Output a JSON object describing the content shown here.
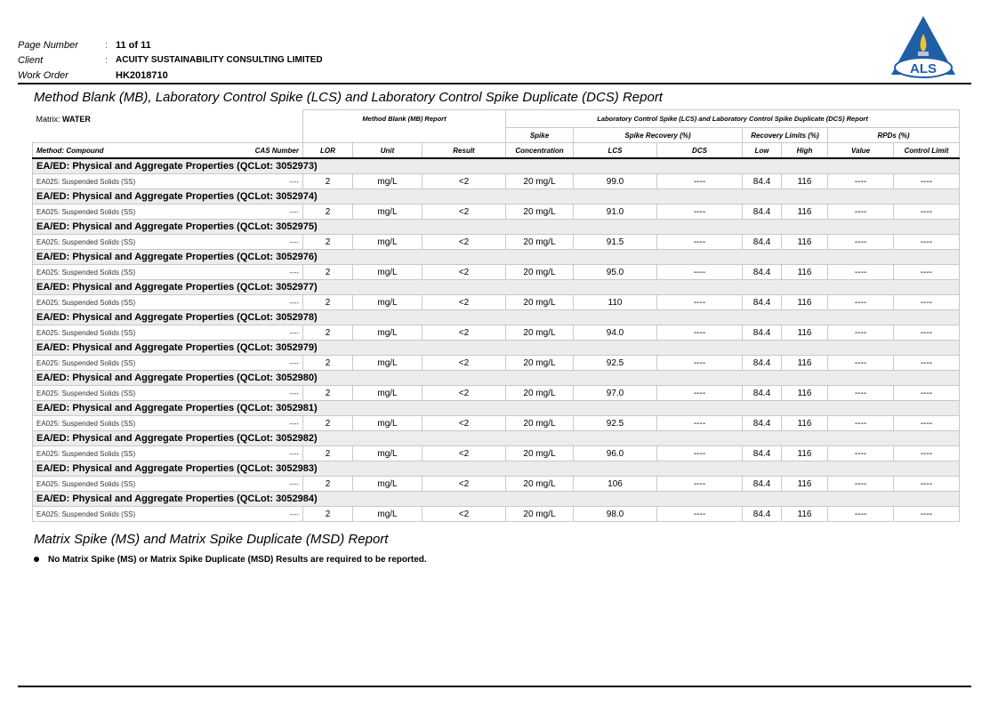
{
  "header": {
    "page_number_label": "Page Number",
    "page_number": "11 of 11",
    "client_label": "Client",
    "client": "ACUITY SUSTAINABILITY CONSULTING LIMITED",
    "work_order_label": "Work Order",
    "work_order": "HK2018710",
    "colon": ":"
  },
  "logo": {
    "text": "ALS",
    "colors": {
      "triangle": "#1f5fa6",
      "flame": "#f2c230"
    }
  },
  "title": "Method Blank (MB), Laboratory Control Spike (LCS) and Laboratory Control Spike Duplicate (DCS) Report",
  "table": {
    "matrix_label": "Matrix:",
    "matrix_value": "WATER",
    "mb_group": "Method Blank (MB) Report",
    "lcs_group": "Laboratory Control Spike (LCS) and Laboratory Control Spike Duplicate (DCS) Report",
    "spike_top": "Spike",
    "spike_recovery": "Spike Recovery (%)",
    "recovery_limits": "Recovery Limits (%)",
    "rpds": "RPDs (%)",
    "columns": {
      "compound": "Method: Compound",
      "cas": "CAS Number",
      "lor": "LOR",
      "unit": "Unit",
      "result": "Result",
      "spike": "Concentration",
      "lcs": "LCS",
      "dcs": "DCS",
      "low": "Low",
      "high": "High",
      "value": "Value",
      "control": "Control Limit"
    },
    "groups": [
      {
        "title": "EA/ED: Physical and Aggregate Properties  (QCLot: 3052973)",
        "row": {
          "compound": "EA025: Suspended Solids (SS)",
          "cas": "----",
          "lor": "2",
          "unit": "mg/L",
          "result": "<2",
          "spike": "20 mg/L",
          "lcs": "99.0",
          "dcs": "----",
          "low": "84.4",
          "high": "116",
          "value": "----",
          "control": "----"
        }
      },
      {
        "title": "EA/ED: Physical and Aggregate Properties  (QCLot: 3052974)",
        "row": {
          "compound": "EA025: Suspended Solids (SS)",
          "cas": "----",
          "lor": "2",
          "unit": "mg/L",
          "result": "<2",
          "spike": "20 mg/L",
          "lcs": "91.0",
          "dcs": "----",
          "low": "84.4",
          "high": "116",
          "value": "----",
          "control": "----"
        }
      },
      {
        "title": "EA/ED: Physical and Aggregate Properties  (QCLot: 3052975)",
        "row": {
          "compound": "EA025: Suspended Solids (SS)",
          "cas": "----",
          "lor": "2",
          "unit": "mg/L",
          "result": "<2",
          "spike": "20 mg/L",
          "lcs": "91.5",
          "dcs": "----",
          "low": "84.4",
          "high": "116",
          "value": "----",
          "control": "----"
        }
      },
      {
        "title": "EA/ED: Physical and Aggregate Properties  (QCLot: 3052976)",
        "row": {
          "compound": "EA025: Suspended Solids (SS)",
          "cas": "----",
          "lor": "2",
          "unit": "mg/L",
          "result": "<2",
          "spike": "20 mg/L",
          "lcs": "95.0",
          "dcs": "----",
          "low": "84.4",
          "high": "116",
          "value": "----",
          "control": "----"
        }
      },
      {
        "title": "EA/ED: Physical and Aggregate Properties  (QCLot: 3052977)",
        "row": {
          "compound": "EA025: Suspended Solids (SS)",
          "cas": "----",
          "lor": "2",
          "unit": "mg/L",
          "result": "<2",
          "spike": "20 mg/L",
          "lcs": "110",
          "dcs": "----",
          "low": "84.4",
          "high": "116",
          "value": "----",
          "control": "----"
        }
      },
      {
        "title": "EA/ED: Physical and Aggregate Properties  (QCLot: 3052978)",
        "row": {
          "compound": "EA025: Suspended Solids (SS)",
          "cas": "----",
          "lor": "2",
          "unit": "mg/L",
          "result": "<2",
          "spike": "20 mg/L",
          "lcs": "94.0",
          "dcs": "----",
          "low": "84.4",
          "high": "116",
          "value": "----",
          "control": "----"
        }
      },
      {
        "title": "EA/ED: Physical and Aggregate Properties  (QCLot: 3052979)",
        "row": {
          "compound": "EA025: Suspended Solids (SS)",
          "cas": "----",
          "lor": "2",
          "unit": "mg/L",
          "result": "<2",
          "spike": "20 mg/L",
          "lcs": "92.5",
          "dcs": "----",
          "low": "84.4",
          "high": "116",
          "value": "----",
          "control": "----"
        }
      },
      {
        "title": "EA/ED: Physical and Aggregate Properties  (QCLot: 3052980)",
        "row": {
          "compound": "EA025: Suspended Solids (SS)",
          "cas": "----",
          "lor": "2",
          "unit": "mg/L",
          "result": "<2",
          "spike": "20 mg/L",
          "lcs": "97.0",
          "dcs": "----",
          "low": "84.4",
          "high": "116",
          "value": "----",
          "control": "----"
        }
      },
      {
        "title": "EA/ED: Physical and Aggregate Properties  (QCLot: 3052981)",
        "row": {
          "compound": "EA025: Suspended Solids (SS)",
          "cas": "----",
          "lor": "2",
          "unit": "mg/L",
          "result": "<2",
          "spike": "20 mg/L",
          "lcs": "92.5",
          "dcs": "----",
          "low": "84.4",
          "high": "116",
          "value": "----",
          "control": "----"
        }
      },
      {
        "title": "EA/ED: Physical and Aggregate Properties  (QCLot: 3052982)",
        "row": {
          "compound": "EA025: Suspended Solids (SS)",
          "cas": "----",
          "lor": "2",
          "unit": "mg/L",
          "result": "<2",
          "spike": "20 mg/L",
          "lcs": "96.0",
          "dcs": "----",
          "low": "84.4",
          "high": "116",
          "value": "----",
          "control": "----"
        }
      },
      {
        "title": "EA/ED: Physical and Aggregate Properties  (QCLot: 3052983)",
        "row": {
          "compound": "EA025: Suspended Solids (SS)",
          "cas": "----",
          "lor": "2",
          "unit": "mg/L",
          "result": "<2",
          "spike": "20 mg/L",
          "lcs": "106",
          "dcs": "----",
          "low": "84.4",
          "high": "116",
          "value": "----",
          "control": "----"
        }
      },
      {
        "title": "EA/ED: Physical and Aggregate Properties  (QCLot: 3052984)",
        "row": {
          "compound": "EA025: Suspended Solids (SS)",
          "cas": "----",
          "lor": "2",
          "unit": "mg/L",
          "result": "<2",
          "spike": "20 mg/L",
          "lcs": "98.0",
          "dcs": "----",
          "low": "84.4",
          "high": "116",
          "value": "----",
          "control": "----"
        }
      }
    ]
  },
  "ms_title": "Matrix Spike (MS) and Matrix Spike Duplicate (MSD) Report",
  "ms_note": "No Matrix Spike (MS) or Matrix Spike Duplicate (MSD) Results are required to be reported."
}
